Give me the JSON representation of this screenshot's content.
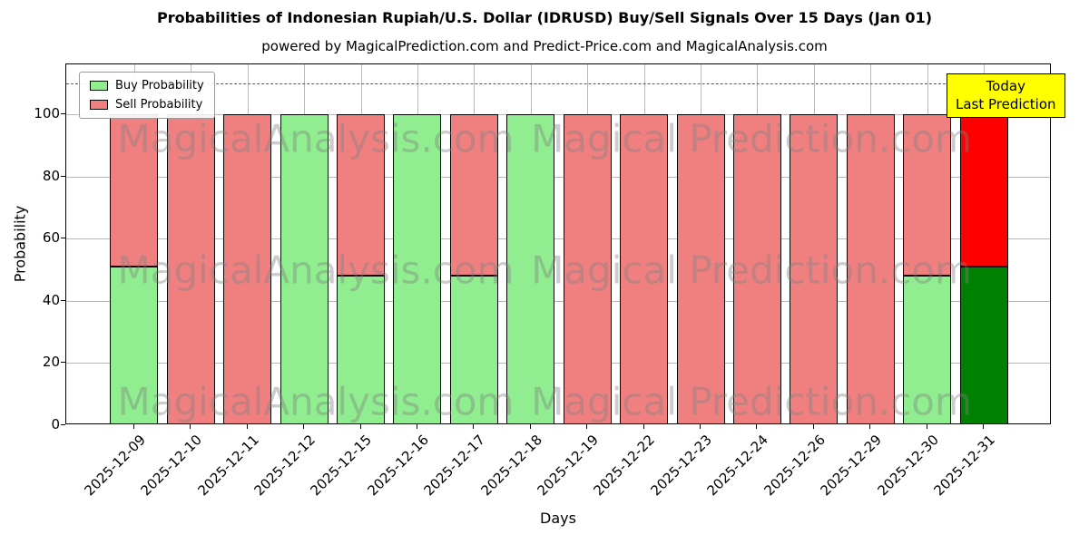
{
  "subtitle": "powered by MagicalPrediction.com and Predict-Price.com and MagicalAnalysis.com",
  "annotation": {
    "line1": "Today",
    "line2": "Last Prediction",
    "bg_color": "#ffff00"
  },
  "watermark": {
    "left_text": "MagicalAnalysis.com",
    "right_text": "Magical Prediction.com",
    "rows": 3
  },
  "chart_data": {
    "type": "bar",
    "stacked": true,
    "title": "Probabilities of Indonesian Rupiah/U.S. Dollar (IDRUSD) Buy/Sell Signals Over 15 Days (Jan 01)",
    "xlabel": "Days",
    "ylabel": "Probability",
    "categories": [
      "2025-12-09",
      "2025-12-10",
      "2025-12-11",
      "2025-12-12",
      "2025-12-15",
      "2025-12-16",
      "2025-12-17",
      "2025-12-18",
      "2025-12-19",
      "2025-12-22",
      "2025-12-23",
      "2025-12-24",
      "2025-12-26",
      "2025-12-29",
      "2025-12-30",
      "2025-12-31"
    ],
    "series": [
      {
        "name": "Buy Probability",
        "color": "#90EE90",
        "today_color": "#008000",
        "values": [
          51,
          0,
          0,
          100,
          48,
          100,
          48,
          100,
          0,
          0,
          0,
          0,
          0,
          0,
          48,
          51
        ]
      },
      {
        "name": "Sell Probability",
        "color": "#F08080",
        "today_color": "#FF0000",
        "values": [
          49,
          100,
          100,
          0,
          52,
          0,
          52,
          0,
          100,
          100,
          100,
          100,
          100,
          100,
          52,
          49
        ]
      }
    ],
    "ylim": [
      0,
      116
    ],
    "yticks": [
      0,
      20,
      40,
      60,
      80,
      100
    ],
    "dashed_line_y": 110,
    "grid": true,
    "legend_position": "upper left",
    "bar_edge_color": "#000000"
  }
}
